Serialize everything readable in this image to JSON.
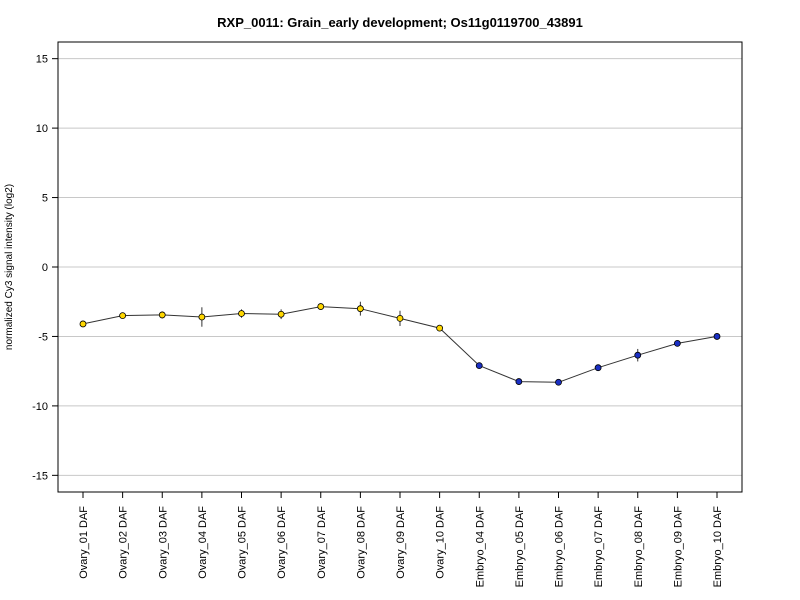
{
  "chart_data": {
    "type": "line",
    "title": "RXP_0011: Grain_early development; Os11g0119700_43891",
    "xlabel": "",
    "ylabel": "normalized Cy3 signal intensity (log2)",
    "ylim": [
      -16.2,
      16.2
    ],
    "yticks": [
      15,
      10,
      5,
      0,
      -5,
      -10,
      -15
    ],
    "ytick_labels": [
      "15",
      "10",
      "5",
      "0",
      "-5",
      "-10",
      "-15"
    ],
    "grid": "horizontal",
    "categories": [
      "Ovary_01 DAF",
      "Ovary_02 DAF",
      "Ovary_03 DAF",
      "Ovary_04 DAF",
      "Ovary_05 DAF",
      "Ovary_06 DAF",
      "Ovary_07 DAF",
      "Ovary_08 DAF",
      "Ovary_09 DAF",
      "Ovary_10 DAF",
      "Embryo_04 DAF",
      "Embryo_05 DAF",
      "Embryo_06 DAF",
      "Embryo_07 DAF",
      "Embryo_08 DAF",
      "Embryo_09 DAF",
      "Embryo_10 DAF"
    ],
    "series": [
      {
        "values": [
          -4.1,
          -3.5,
          -3.45,
          -3.6,
          -3.35,
          -3.4,
          -2.85,
          -3.0,
          -3.7,
          -4.4,
          -7.1,
          -8.25,
          -8.3,
          -7.25,
          -6.35,
          -5.5,
          -5.0
        ],
        "error": [
          0.2,
          0.2,
          0.25,
          0.7,
          0.3,
          0.35,
          0.2,
          0.5,
          0.55,
          0.2,
          0.2,
          0.15,
          0.15,
          0.2,
          0.45,
          0.2,
          0.15
        ],
        "colors": [
          "#FFD700",
          "#FFD700",
          "#FFD700",
          "#FFD700",
          "#FFD700",
          "#FFD700",
          "#FFD700",
          "#FFD700",
          "#FFD700",
          "#FFD700",
          "#1A2FC4",
          "#1A2FC4",
          "#1A2FC4",
          "#1A2FC4",
          "#1A2FC4",
          "#1A2FC4",
          "#1A2FC4"
        ]
      }
    ],
    "line_color": "#333333",
    "grid_color": "#c8c8c8"
  }
}
